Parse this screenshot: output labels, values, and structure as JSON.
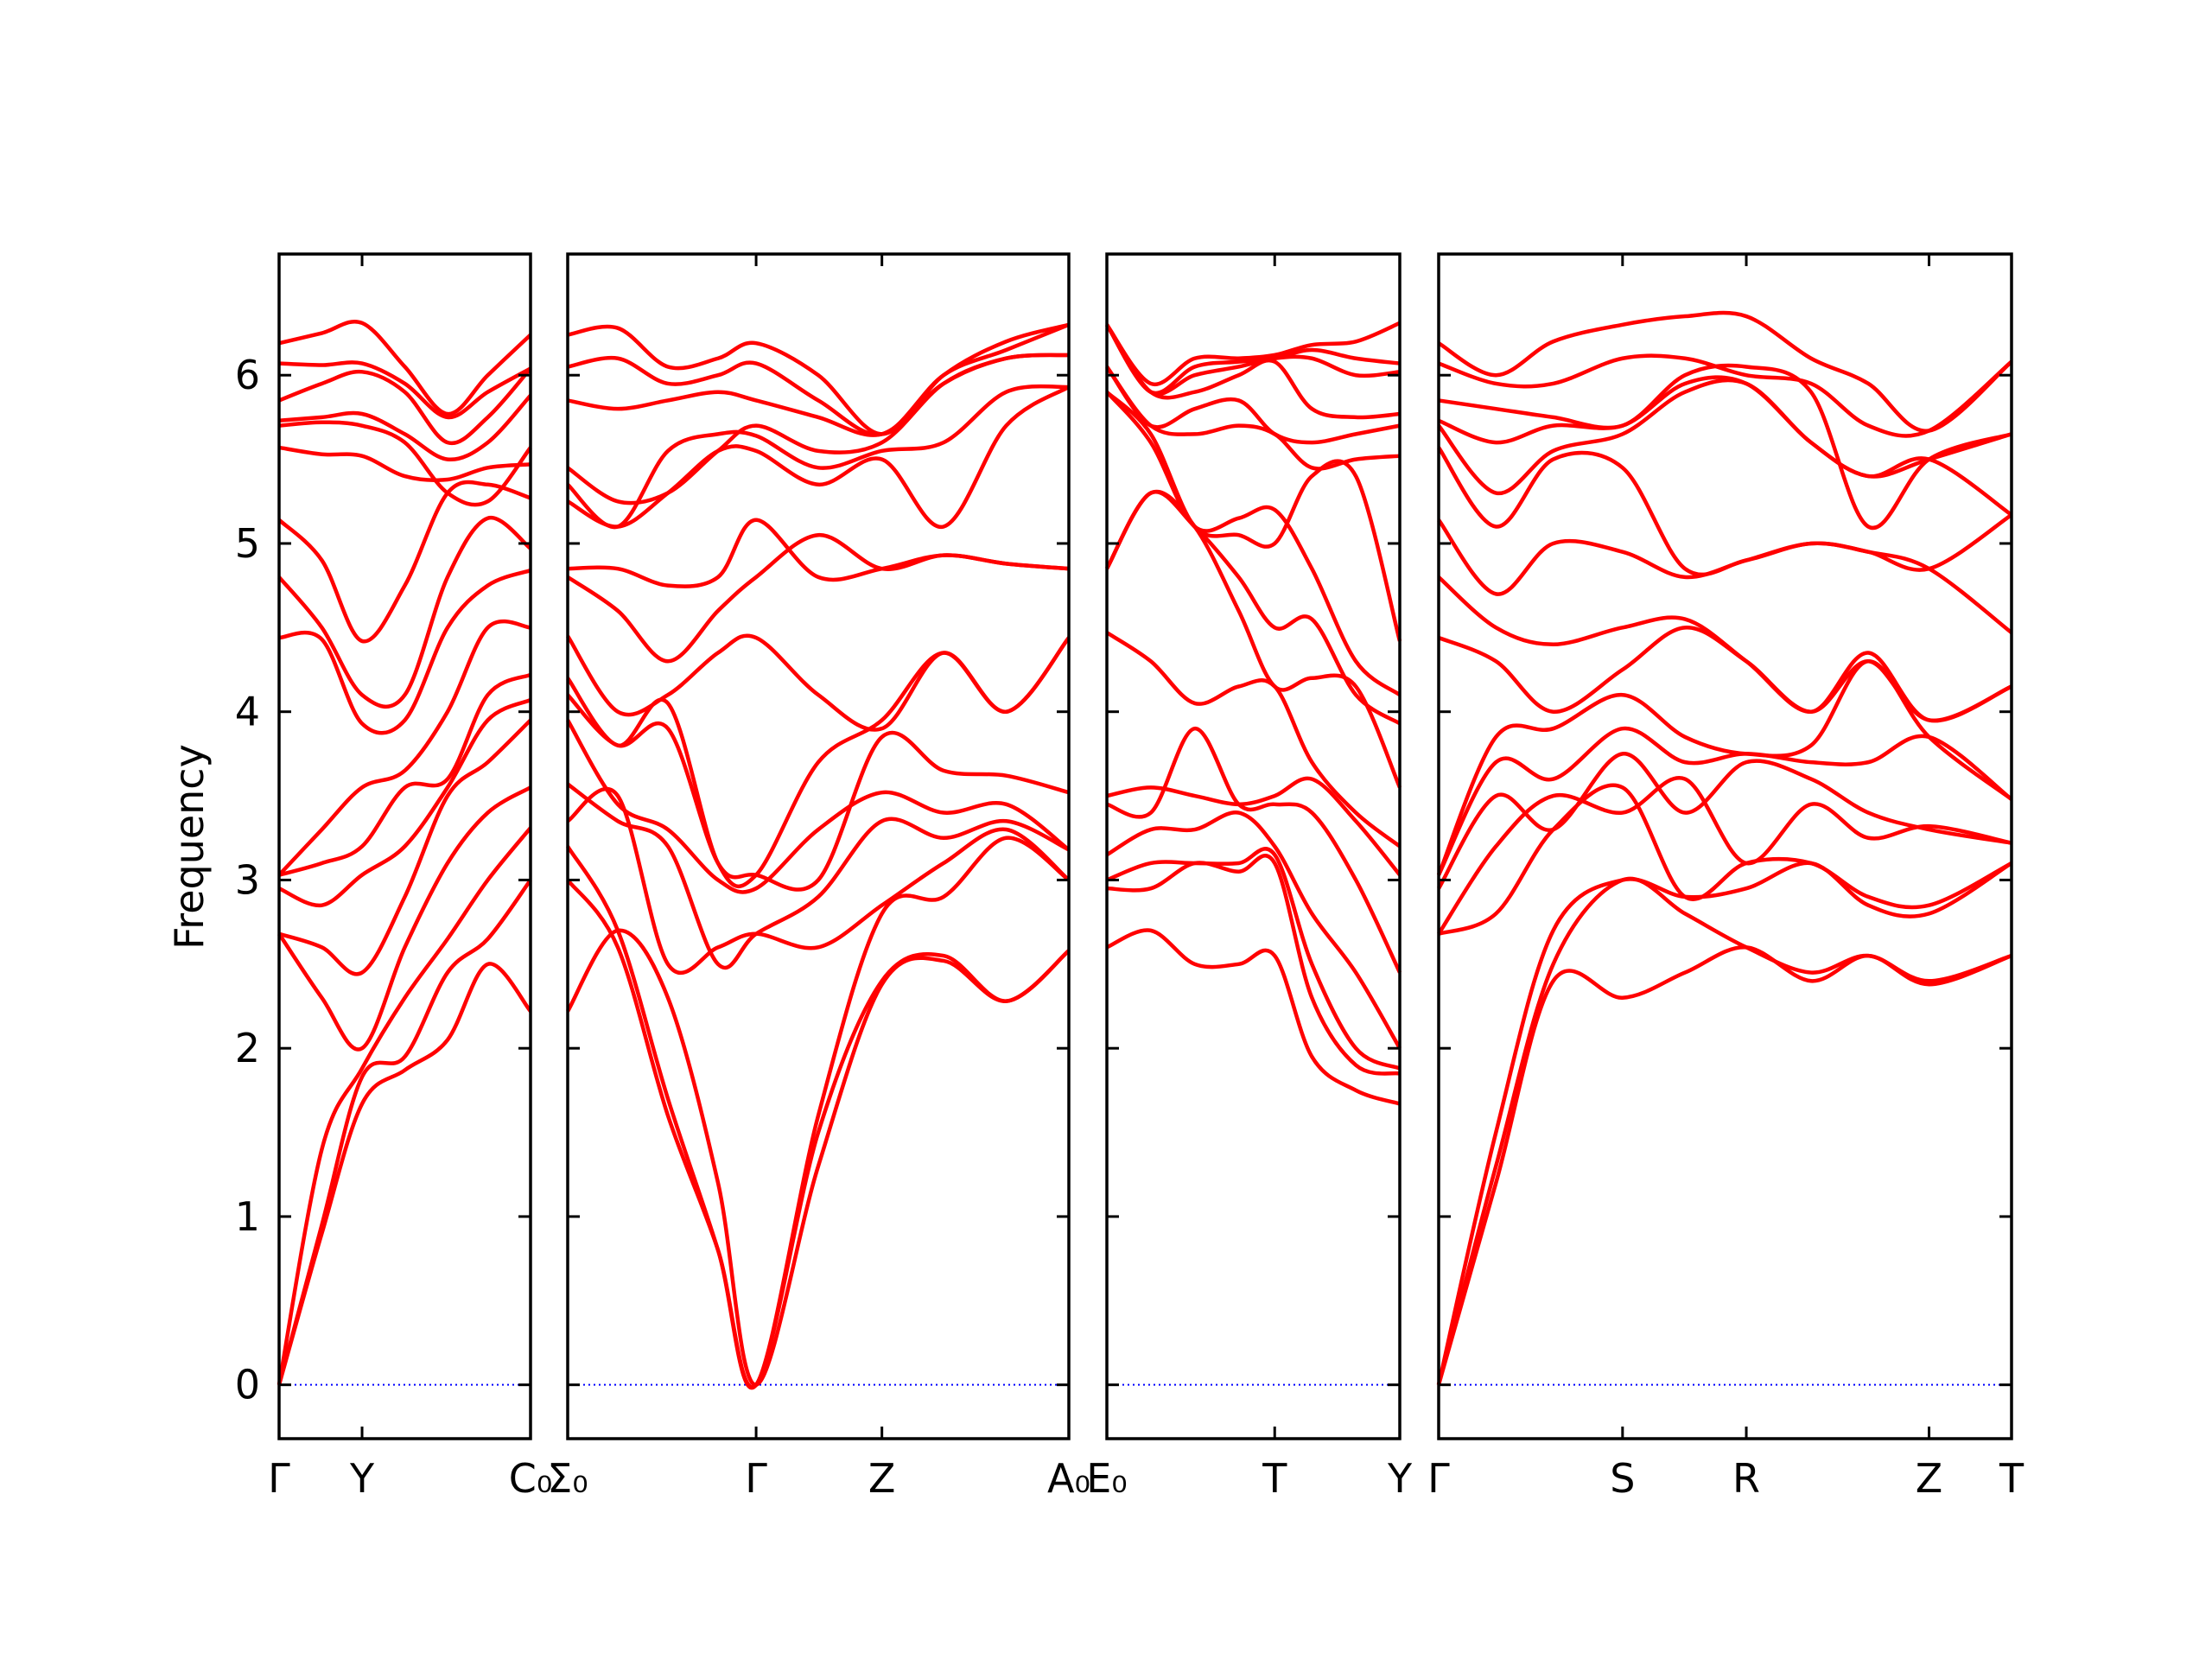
{
  "chart_data": {
    "type": "line",
    "title": "",
    "ylabel": "Frequency",
    "ylim": [
      -0.32,
      6.72
    ],
    "yticks": [
      "0",
      "1",
      "2",
      "3",
      "4",
      "5",
      "6"
    ],
    "grid": false,
    "line_color": "#ff0000",
    "zero_line_color": "#0000ff",
    "panels": [
      {
        "ticks": [
          {
            "x": 0,
            "label": "Γ"
          },
          {
            "x": 0.33,
            "label": "Y"
          },
          {
            "x": 1,
            "label": "C₀"
          }
        ],
        "x": [
          0,
          0.17,
          0.33,
          0.5,
          0.67,
          0.83,
          1
        ],
        "bands": [
          [
            0,
            0.9,
            1.67,
            1.87,
            2.05,
            2.5,
            2.22
          ],
          [
            0,
            0.95,
            1.83,
            1.95,
            2.45,
            2.65,
            3.0
          ],
          [
            0,
            1.4,
            1.88,
            2.3,
            2.65,
            3.0,
            3.31
          ],
          [
            2.68,
            2.3,
            2.0,
            2.6,
            3.1,
            3.4,
            3.55
          ],
          [
            2.68,
            2.6,
            2.45,
            2.9,
            3.5,
            3.7,
            3.95
          ],
          [
            2.95,
            2.85,
            3.03,
            3.2,
            3.55,
            3.95,
            4.07
          ],
          [
            3.03,
            3.1,
            3.2,
            3.55,
            3.6,
            4.1,
            4.22
          ],
          [
            3.03,
            3.3,
            3.55,
            3.65,
            4.0,
            4.5,
            4.5
          ],
          [
            4.44,
            4.43,
            3.93,
            3.95,
            4.5,
            4.75,
            4.84
          ],
          [
            4.8,
            4.5,
            4.1,
            4.1,
            4.8,
            5.15,
            4.97
          ],
          [
            5.14,
            4.9,
            4.42,
            4.75,
            5.3,
            5.35,
            5.27
          ],
          [
            5.57,
            5.53,
            5.52,
            5.4,
            5.38,
            5.45,
            5.47
          ],
          [
            5.7,
            5.72,
            5.7,
            5.6,
            5.3,
            5.25,
            5.57
          ],
          [
            5.73,
            5.75,
            5.77,
            5.65,
            5.5,
            5.6,
            5.88
          ],
          [
            5.85,
            5.95,
            6.02,
            5.9,
            5.6,
            5.75,
            6.04
          ],
          [
            6.07,
            6.06,
            6.07,
            5.95,
            5.75,
            5.9,
            6.04
          ],
          [
            6.19,
            6.25,
            6.31,
            6.05,
            5.77,
            6.0,
            6.24
          ]
        ]
      },
      {
        "ticks": [
          {
            "x": 0,
            "label": "Σ₀"
          },
          {
            "x": 0.376,
            "label": "Γ"
          },
          {
            "x": 0.627,
            "label": "Z"
          },
          {
            "x": 1,
            "label": "A₀"
          }
        ],
        "x": [
          0,
          0.1,
          0.2,
          0.3,
          0.376,
          0.5,
          0.627,
          0.75,
          0.875,
          1
        ],
        "bands": [
          [
            2.22,
            2.7,
            2.3,
            1.2,
            0,
            1.3,
            2.38,
            2.52,
            2.28,
            2.58
          ],
          [
            3.0,
            2.6,
            1.6,
            0.8,
            0,
            1.5,
            2.4,
            2.55,
            2.28,
            2.58
          ],
          [
            3.2,
            2.7,
            1.7,
            0.8,
            0,
            1.6,
            2.8,
            2.9,
            3.25,
            3.0
          ],
          [
            3.35,
            3.5,
            2.5,
            2.6,
            2.68,
            2.6,
            2.85,
            3.1,
            3.3,
            3.0
          ],
          [
            3.57,
            3.35,
            3.2,
            2.5,
            2.68,
            2.9,
            3.35,
            3.25,
            3.35,
            3.18
          ],
          [
            3.95,
            3.45,
            3.3,
            3.0,
            2.95,
            3.3,
            3.52,
            3.4,
            3.45,
            3.18
          ],
          [
            4.1,
            3.8,
            3.9,
            3.1,
            3.03,
            3.0,
            3.85,
            3.65,
            3.62,
            3.52
          ],
          [
            4.2,
            3.8,
            4.05,
            3.1,
            3.03,
            3.7,
            3.95,
            4.35,
            4.0,
            4.44
          ],
          [
            4.45,
            4.0,
            4.1,
            4.35,
            4.44,
            4.1,
            3.9,
            4.35,
            4.0,
            4.44
          ],
          [
            4.8,
            4.6,
            4.3,
            4.6,
            4.8,
            5.05,
            4.85,
            4.93,
            4.88,
            4.85
          ],
          [
            4.85,
            4.85,
            4.75,
            4.8,
            5.14,
            4.8,
            4.85,
            4.93,
            4.88,
            4.85
          ],
          [
            5.25,
            5.1,
            5.3,
            5.55,
            5.55,
            5.35,
            5.5,
            5.1,
            5.7,
            5.93
          ],
          [
            5.35,
            5.1,
            5.55,
            5.65,
            5.64,
            5.45,
            5.55,
            5.6,
            5.9,
            5.93
          ],
          [
            5.45,
            5.25,
            5.3,
            5.55,
            5.7,
            5.55,
            5.6,
            5.95,
            6.1,
            6.12
          ],
          [
            5.85,
            5.8,
            5.85,
            5.9,
            5.85,
            5.75,
            5.65,
            5.95,
            6.1,
            6.12
          ],
          [
            6.05,
            6.1,
            5.95,
            6.0,
            6.07,
            5.85,
            5.65,
            6.0,
            6.15,
            6.3
          ],
          [
            6.24,
            6.28,
            6.05,
            6.1,
            6.19,
            6.0,
            5.65,
            6.0,
            6.2,
            6.3
          ]
        ]
      },
      {
        "ticks": [
          {
            "x": 0,
            "label": "E₀"
          },
          {
            "x": 0.573,
            "label": "T"
          },
          {
            "x": 1,
            "label": "Y"
          }
        ],
        "x": [
          0,
          0.15,
          0.3,
          0.45,
          0.573,
          0.7,
          0.85,
          1
        ],
        "bands": [
          [
            2.6,
            2.7,
            2.5,
            2.5,
            2.55,
            1.95,
            1.75,
            1.67
          ],
          [
            2.95,
            2.95,
            3.1,
            3.05,
            3.1,
            2.3,
            1.9,
            1.85
          ],
          [
            3.0,
            3.1,
            3.1,
            3.1,
            3.15,
            2.5,
            2.0,
            1.88
          ],
          [
            3.15,
            3.3,
            3.3,
            3.4,
            3.2,
            2.8,
            2.45,
            2.0
          ],
          [
            3.45,
            3.4,
            3.9,
            3.45,
            3.45,
            3.4,
            3.0,
            2.45
          ],
          [
            3.5,
            3.55,
            3.5,
            3.45,
            3.5,
            3.6,
            3.35,
            3.03
          ],
          [
            4.47,
            4.3,
            4.05,
            4.15,
            4.15,
            3.7,
            3.4,
            3.2
          ],
          [
            4.85,
            5.3,
            5.1,
            4.6,
            4.15,
            4.2,
            4.15,
            3.55
          ],
          [
            4.85,
            5.3,
            5.1,
            4.8,
            4.5,
            4.55,
            4.1,
            3.93
          ],
          [
            5.9,
            5.6,
            5.1,
            5.15,
            5.2,
            4.85,
            4.3,
            4.1
          ],
          [
            5.9,
            5.65,
            5.1,
            5.05,
            5.0,
            5.4,
            5.4,
            4.42
          ],
          [
            6.05,
            5.7,
            5.65,
            5.7,
            5.65,
            5.45,
            5.5,
            5.52
          ],
          [
            6.05,
            5.7,
            5.8,
            5.85,
            5.65,
            5.6,
            5.65,
            5.7
          ],
          [
            6.3,
            5.9,
            5.9,
            6.0,
            6.08,
            5.8,
            5.75,
            5.77
          ],
          [
            6.3,
            5.9,
            6.0,
            6.05,
            6.1,
            6.1,
            6.0,
            6.02
          ],
          [
            6.3,
            5.9,
            6.05,
            6.08,
            6.1,
            6.15,
            6.1,
            6.07
          ],
          [
            6.3,
            5.95,
            6.1,
            6.1,
            6.12,
            6.18,
            6.2,
            6.31
          ]
        ]
      },
      {
        "ticks": [
          {
            "x": 0,
            "label": "Γ"
          },
          {
            "x": 0.321,
            "label": "S"
          },
          {
            "x": 0.537,
            "label": "R"
          },
          {
            "x": 0.856,
            "label": "Z"
          },
          {
            "x": 1,
            "label": "T"
          }
        ],
        "x": [
          0,
          0.1,
          0.2,
          0.321,
          0.43,
          0.537,
          0.65,
          0.75,
          0.856,
          1
        ],
        "bands": [
          [
            0,
            1.2,
            2.4,
            2.3,
            2.45,
            2.6,
            2.4,
            2.55,
            2.38,
            2.55
          ],
          [
            0,
            1.3,
            2.5,
            3.0,
            2.8,
            2.6,
            2.45,
            2.55,
            2.4,
            2.55
          ],
          [
            0,
            1.5,
            2.7,
            3.0,
            2.9,
            2.95,
            3.1,
            2.85,
            2.8,
            3.1
          ],
          [
            2.68,
            2.8,
            3.3,
            3.55,
            2.9,
            3.1,
            3.1,
            2.9,
            2.85,
            3.1
          ],
          [
            2.68,
            3.2,
            3.5,
            3.4,
            3.6,
            3.1,
            3.45,
            3.25,
            3.32,
            3.22
          ],
          [
            2.95,
            3.5,
            3.3,
            3.75,
            3.4,
            3.7,
            3.6,
            3.4,
            3.3,
            3.22
          ],
          [
            3.03,
            3.7,
            3.6,
            3.9,
            3.7,
            3.75,
            3.7,
            3.7,
            3.85,
            3.48
          ],
          [
            3.03,
            3.85,
            3.9,
            4.1,
            3.85,
            3.75,
            3.8,
            4.3,
            3.85,
            3.48
          ],
          [
            4.44,
            4.3,
            4.0,
            4.25,
            4.5,
            4.3,
            4.0,
            4.3,
            3.95,
            4.15
          ],
          [
            4.8,
            4.5,
            4.4,
            4.5,
            4.55,
            4.3,
            4.0,
            4.35,
            3.95,
            4.15
          ],
          [
            5.14,
            4.7,
            5.0,
            4.95,
            4.8,
            4.9,
            5.0,
            4.95,
            4.85,
            4.47
          ],
          [
            5.57,
            5.1,
            5.5,
            5.45,
            4.85,
            4.9,
            5.0,
            4.95,
            4.85,
            5.17
          ],
          [
            5.7,
            5.3,
            5.55,
            5.65,
            5.9,
            5.95,
            5.6,
            5.4,
            5.5,
            5.17
          ],
          [
            5.73,
            5.6,
            5.7,
            5.7,
            5.95,
            5.95,
            5.6,
            5.4,
            5.5,
            5.65
          ],
          [
            5.85,
            5.8,
            5.75,
            5.7,
            6.0,
            6.05,
            5.9,
            5.1,
            5.5,
            5.65
          ],
          [
            6.07,
            5.95,
            5.95,
            6.1,
            6.1,
            6.0,
            5.95,
            5.7,
            5.67,
            6.08
          ],
          [
            6.19,
            6.0,
            6.2,
            6.3,
            6.35,
            6.35,
            6.1,
            5.95,
            5.67,
            6.08
          ]
        ]
      }
    ]
  }
}
